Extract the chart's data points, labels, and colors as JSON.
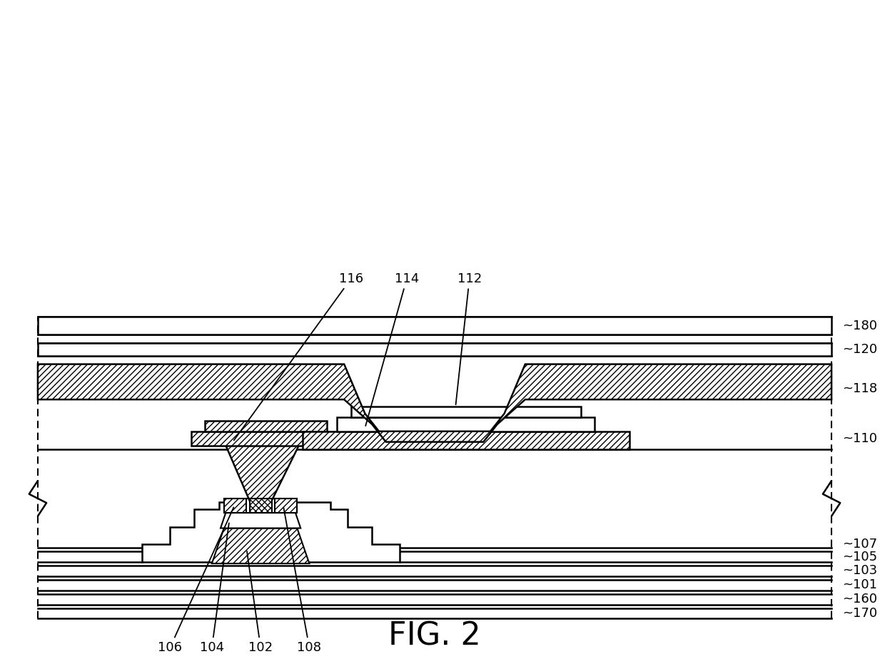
{
  "title": "FIG. 2",
  "bg": "#ffffff",
  "lc": "#000000",
  "fig_w": 12.4,
  "fig_h": 9.31,
  "dpi": 100
}
